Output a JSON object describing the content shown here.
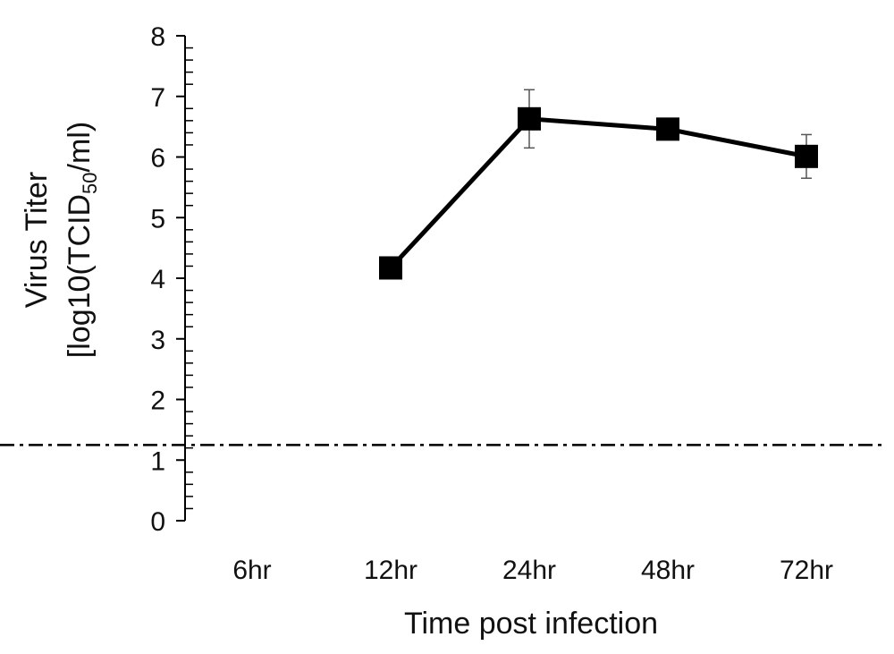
{
  "chart_data": {
    "type": "line",
    "categories": [
      "6hr",
      "12hr",
      "24hr",
      "48hr",
      "72hr"
    ],
    "series": [
      {
        "values": [
          null,
          4.17,
          6.63,
          6.46,
          6.01
        ],
        "error": [
          null,
          null,
          0.48,
          null,
          0.36
        ],
        "marker": "square",
        "color": "#000000"
      }
    ],
    "reference_line": {
      "y": 1.25,
      "style": "dash-dot"
    },
    "ylim": [
      0,
      8
    ],
    "yticks": [
      "0",
      "1",
      "2",
      "3",
      "4",
      "5",
      "6",
      "7",
      "8"
    ],
    "xlabel": "Time post infection",
    "ylabel": {
      "line1": "Virus Titer",
      "line2_prefix": "[log10(TCID",
      "line2_sub": "50",
      "line2_suffix": "/ml)"
    },
    "grid": false,
    "legend": "none"
  }
}
